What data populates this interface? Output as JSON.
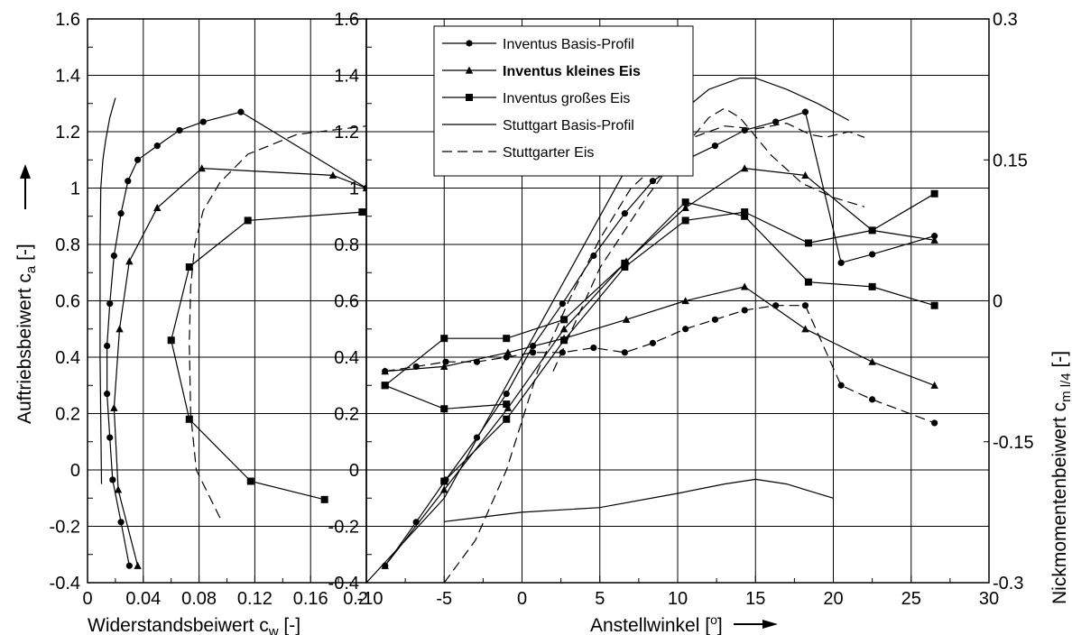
{
  "chart_data": [
    {
      "type": "line",
      "panel": "left",
      "xlabel_main": "Widerstandsbeiwert  c",
      "xlabel_sub": "w",
      "xlabel_unit": "  [-]",
      "ylabel_main": "Auftriebsbeiwert c",
      "ylabel_sub": "a",
      "ylabel_unit": "  [-]",
      "xlim": [
        0,
        0.2
      ],
      "ylim": [
        -0.4,
        1.6
      ],
      "xticks": [
        "0",
        "0.04",
        "0.08",
        "0.12",
        "0.16",
        "0.2"
      ],
      "yticks": [
        "-0.4",
        "-0.2",
        "0",
        "0.2",
        "0.4",
        "0.6",
        "0.8",
        "1",
        "1.2",
        "1.4",
        "1.6"
      ],
      "grid": true,
      "series": [
        {
          "name": "Inventus Basis-Profil",
          "style": "solid",
          "marker": "circle",
          "x": [
            0.03,
            0.024,
            0.018,
            0.016,
            0.014,
            0.014,
            0.016,
            0.019,
            0.024,
            0.029,
            0.036,
            0.05,
            0.066,
            0.083,
            0.11,
            0.2
          ],
          "y": [
            -0.34,
            -0.185,
            -0.035,
            0.115,
            0.27,
            0.44,
            0.59,
            0.76,
            0.91,
            1.025,
            1.1,
            1.15,
            1.205,
            1.235,
            1.27,
            1.0
          ]
        },
        {
          "name": "Inventus kleines Eis",
          "style": "solid",
          "marker": "triangle",
          "x": [
            0.036,
            0.022,
            0.019,
            0.023,
            0.03,
            0.05,
            0.082,
            0.176,
            0.2
          ],
          "y": [
            -0.34,
            -0.07,
            0.22,
            0.5,
            0.74,
            0.93,
            1.07,
            1.045,
            1.0
          ]
        },
        {
          "name": "Inventus großes Eis",
          "style": "solid",
          "marker": "square",
          "x": [
            0.17,
            0.117,
            0.073,
            0.06,
            0.073,
            0.115,
            0.197
          ],
          "y": [
            -0.105,
            -0.04,
            0.18,
            0.46,
            0.72,
            0.885,
            0.915
          ]
        },
        {
          "name": "Stuttgart Basis-Profil",
          "style": "solid",
          "marker": "none",
          "x": [
            0.01,
            0.009,
            0.009,
            0.0095,
            0.011,
            0.013,
            0.016,
            0.02
          ],
          "y": [
            -0.05,
            0.4,
            0.8,
            1.0,
            1.1,
            1.17,
            1.25,
            1.32
          ]
        },
        {
          "name": "Stuttgarter Eis",
          "style": "dashed",
          "marker": "none",
          "x": [
            0.095,
            0.078,
            0.074,
            0.073,
            0.074,
            0.077,
            0.083,
            0.095,
            0.115,
            0.15,
            0.2
          ],
          "y": [
            -0.17,
            0.0,
            0.2,
            0.45,
            0.65,
            0.8,
            0.92,
            1.02,
            1.12,
            1.19,
            1.22
          ]
        }
      ]
    },
    {
      "type": "line",
      "panel": "right",
      "xlabel": "Anstellwinkel [",
      "xlabel_sup": "o",
      "xlabel_end": "]",
      "y2label_main": "Nickmomentenbeiwert c",
      "y2label_sub": "m l/4",
      "y2label_unit": " [-]",
      "xlim": [
        -10,
        30
      ],
      "ylim": [
        -0.4,
        1.6
      ],
      "y2lim": [
        -0.3,
        0.3
      ],
      "xticks": [
        "-10",
        "-5",
        "0",
        "5",
        "10",
        "15",
        "20",
        "25",
        "30"
      ],
      "yticks": [
        "-0.4",
        "-0.2",
        "0",
        "0.2",
        "0.4",
        "0.6",
        "0.8",
        "1",
        "1.2",
        "1.4",
        "1.6"
      ],
      "y2ticks": [
        "-0.3",
        "-0.15",
        "0",
        "0.15",
        "0.3"
      ],
      "grid": true,
      "legend_position": "top-left",
      "legend": [
        {
          "label": "Inventus Basis-Profil",
          "marker": "circle",
          "style": "solid",
          "bold": false
        },
        {
          "label": "Inventus kleines Eis",
          "marker": "triangle",
          "style": "solid",
          "bold": true
        },
        {
          "label": "Inventus großes Eis",
          "marker": "square",
          "style": "solid",
          "bold": false
        },
        {
          "label": "Stuttgart Basis-Profil",
          "marker": "none",
          "style": "solid",
          "bold": false
        },
        {
          "label": "Stuttgarter Eis",
          "marker": "none",
          "style": "dashed",
          "bold": false
        }
      ],
      "series": [
        {
          "name": "Inventus Basis-Profil",
          "quantity": "lift",
          "style": "solid",
          "marker": "circle",
          "x": [
            -8.8,
            -6.8,
            -4.9,
            -2.9,
            -1.0,
            0.7,
            2.6,
            4.6,
            6.6,
            8.4,
            10.5,
            12.4,
            14.3,
            16.3,
            18.2,
            20.5,
            22.5,
            26.5
          ],
          "y": [
            -0.34,
            -0.185,
            -0.035,
            0.115,
            0.27,
            0.44,
            0.59,
            0.76,
            0.91,
            1.025,
            1.1,
            1.15,
            1.205,
            1.235,
            1.27,
            0.735,
            0.765,
            0.83
          ]
        },
        {
          "name": "Inventus kleines Eis",
          "quantity": "lift",
          "style": "solid",
          "marker": "triangle",
          "x": [
            -8.8,
            -5.0,
            -0.9,
            2.7,
            6.7,
            10.5,
            14.3,
            18.2,
            22.5,
            26.5
          ],
          "y": [
            -0.34,
            -0.07,
            0.22,
            0.5,
            0.74,
            0.93,
            1.07,
            1.045,
            0.85,
            0.815
          ]
        },
        {
          "name": "Inventus großes Eis",
          "quantity": "lift",
          "style": "solid",
          "marker": "square",
          "x": [
            -5.0,
            -1.0,
            2.7,
            6.6,
            10.5,
            14.3,
            18.4,
            22.5,
            26.5
          ],
          "y": [
            -0.04,
            0.18,
            0.46,
            0.72,
            0.885,
            0.915,
            0.805,
            0.85,
            0.98
          ]
        },
        {
          "name": "Stuttgart Basis-Profil",
          "quantity": "lift",
          "style": "solid",
          "marker": "none",
          "x": [
            -10,
            -5,
            0,
            3,
            5,
            7,
            9,
            10,
            12,
            14,
            15,
            17,
            19,
            21
          ],
          "y": [
            -0.4,
            -0.1,
            0.4,
            0.7,
            0.9,
            1.1,
            1.2,
            1.26,
            1.35,
            1.39,
            1.39,
            1.35,
            1.3,
            1.24
          ]
        },
        {
          "name": "Stuttgarter Eis",
          "quantity": "lift",
          "style": "dashed",
          "marker": "none",
          "x": [
            -5,
            -3,
            -1,
            1,
            3,
            5,
            7,
            9,
            11,
            13,
            15,
            17,
            18.5,
            19.5,
            21,
            22
          ],
          "y": [
            -0.4,
            -0.25,
            0.0,
            0.35,
            0.6,
            0.82,
            1.0,
            1.1,
            1.18,
            1.22,
            1.21,
            1.23,
            1.19,
            1.18,
            1.2,
            1.18
          ]
        },
        {
          "name": "Inventus Basis-Profil",
          "quantity": "pitching moment",
          "style": "dashed",
          "marker": "circle",
          "x": [
            -8.8,
            -6.8,
            -4.9,
            -2.9,
            -1.0,
            0.7,
            2.6,
            4.6,
            6.6,
            8.4,
            10.5,
            12.4,
            14.3,
            16.3,
            18.2,
            20.5,
            22.5,
            26.5
          ],
          "y": [
            -0.075,
            -0.07,
            -0.065,
            -0.065,
            -0.06,
            -0.055,
            -0.055,
            -0.05,
            -0.055,
            -0.045,
            -0.03,
            -0.02,
            -0.01,
            -0.005,
            -0.005,
            -0.09,
            -0.105,
            -0.13
          ]
        },
        {
          "name": "Inventus kleines Eis",
          "quantity": "pitching moment",
          "style": "solid",
          "marker": "triangle",
          "x": [
            -8.8,
            -5.0,
            -0.9,
            2.7,
            6.7,
            10.5,
            14.3,
            18.2,
            22.5,
            26.5
          ],
          "y": [
            -0.075,
            -0.07,
            -0.055,
            -0.04,
            -0.02,
            0.0,
            0.015,
            -0.03,
            -0.065,
            -0.09
          ]
        },
        {
          "name": "Inventus großes Eis",
          "quantity": "pitching moment",
          "style": "solid",
          "marker": "square",
          "x": [
            -8.8,
            -5.0,
            -1.0,
            2.7,
            6.6,
            10.5,
            14.3,
            18.4,
            22.5,
            26.5
          ],
          "y": [
            -0.09,
            -0.04,
            -0.04,
            -0.02,
            0.04,
            0.105,
            0.09,
            0.02,
            0.015,
            -0.005
          ]
        },
        {
          "name": "Inventus großes Eis",
          "quantity": "pitching moment",
          "style": "solid",
          "marker": "square",
          "x": [
            -8.8,
            -5.0,
            -1.0
          ],
          "y": [
            -0.09,
            -0.115,
            -0.11
          ]
        },
        {
          "name": "Stuttgart Basis-Profil",
          "quantity": "pitching moment",
          "style": "solid",
          "marker": "none",
          "x": [
            -5,
            0,
            5,
            10,
            13,
            15,
            17,
            20
          ],
          "y": [
            -0.235,
            -0.225,
            -0.22,
            -0.205,
            -0.195,
            -0.19,
            -0.195,
            -0.21
          ]
        },
        {
          "name": "Stuttgarter Eis",
          "quantity": "pitching moment",
          "style": "dashed",
          "marker": "none",
          "x": [
            2,
            5,
            8,
            10,
            12,
            13,
            14,
            16,
            18,
            20,
            22
          ],
          "y": [
            -0.075,
            0.035,
            0.11,
            0.155,
            0.195,
            0.205,
            0.195,
            0.155,
            0.125,
            0.11,
            0.1
          ]
        }
      ]
    }
  ]
}
